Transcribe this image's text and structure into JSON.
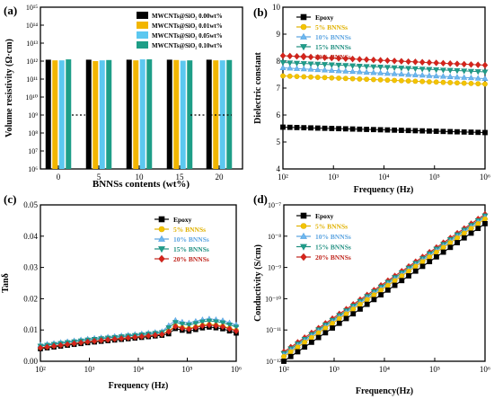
{
  "colors": {
    "epoxy": "#000000",
    "bn5": "#e0b100",
    "bn10": "#5aa3e0",
    "bn15": "#1f8f80",
    "bn20": "#c0261d",
    "marker_fill_5": "#f4c400",
    "marker_fill_10": "#6cb8f0",
    "marker_fill_15": "#1f9e8a",
    "marker_fill_20": "#d8231b"
  },
  "chart_data": [
    {
      "panel": "(a)",
      "type": "bar",
      "ylabel": "Volume resistivity (Ω·cm)",
      "xlabel": "BNNSs contents (wt%)",
      "yscale": "log",
      "ylim_exp": [
        6,
        15
      ],
      "ytick_labels": [
        "10⁶",
        "10⁷",
        "10⁸",
        "10⁹",
        "10¹⁰",
        "10¹¹",
        "10¹²",
        "10¹³",
        "10¹⁴",
        "10¹⁵"
      ],
      "categories": [
        "0",
        "5",
        "10",
        "15",
        "20"
      ],
      "series": [
        {
          "name": "MWCNTs@SiO₂ 0.00wt%",
          "color": "#000000",
          "values": [
            1200000000000.0,
            1200000000000.0,
            1200000000000.0,
            1200000000000.0,
            1200000000000.0
          ]
        },
        {
          "name": "MWCNTs@SiO₂ 0.01wt%",
          "color": "#f2b600",
          "values": [
            1100000000000.0,
            1000000000000.0,
            1100000000000.0,
            1150000000000.0,
            1100000000000.0
          ]
        },
        {
          "name": "MWCNTs@SiO₂ 0.05wt%",
          "color": "#5cc8f0",
          "values": [
            1100000000000.0,
            1100000000000.0,
            1250000000000.0,
            1050000000000.0,
            1100000000000.0
          ]
        },
        {
          "name": "MWCNTs@SiO₂ 0.10wt%",
          "color": "#1e9e87",
          "values": [
            1250000000000.0,
            1150000000000.0,
            1250000000000.0,
            1100000000000.0,
            1150000000000.0
          ]
        }
      ],
      "reference_line": 1000000000.0
    },
    {
      "panel": "(b)",
      "type": "line",
      "ylabel": "Dielectric constant",
      "xlabel": "Frequency (Hz)",
      "xscale": "log",
      "xlim_exp": [
        2,
        6
      ],
      "xtick_labels": [
        "10²",
        "10³",
        "10⁴",
        "10⁵",
        "10⁶"
      ],
      "ylim": [
        4,
        10
      ],
      "ytick_labels": [
        "4",
        "5",
        "6",
        "7",
        "8",
        "9",
        "10"
      ],
      "yticks": [
        4,
        5,
        6,
        7,
        8,
        9,
        10
      ],
      "legend": [
        "Epoxy",
        "5%   BNNSs",
        "10%  BNNSs",
        "15%  BNNSs",
        "20%  BNNSs"
      ],
      "series": [
        {
          "name": "Epoxy",
          "start": 5.55,
          "end": 5.35
        },
        {
          "name": "5%   BNNSs",
          "start": 7.45,
          "end": 7.15
        },
        {
          "name": "10%  BNNSs",
          "start": 7.75,
          "end": 7.35
        },
        {
          "name": "15%  BNNSs",
          "start": 7.95,
          "end": 7.6
        },
        {
          "name": "20%  BNNSs",
          "start": 8.2,
          "end": 7.85
        }
      ]
    },
    {
      "panel": "(c)",
      "type": "line",
      "ylabel": "Tanδ",
      "xlabel": "Frequency (Hz)",
      "xscale": "log",
      "xlim_exp": [
        2,
        6
      ],
      "xtick_labels": [
        "10²",
        "10³",
        "10⁴",
        "10⁵",
        "10⁶"
      ],
      "ylim": [
        0,
        0.05
      ],
      "ytick_labels": [
        "0.00",
        "0.01",
        "0.02",
        "0.03",
        "0.04",
        "0.05"
      ],
      "yticks": [
        0,
        0.01,
        0.02,
        0.03,
        0.04,
        0.05
      ],
      "legend": [
        "Epoxy",
        "5%   BNNSs",
        "10%  BNNSs",
        "15%  BNNSs",
        "20%  BNNSs"
      ],
      "series": [
        {
          "name": "Epoxy",
          "offset": 0.0
        },
        {
          "name": "5%   BNNSs",
          "offset": 0.0004
        },
        {
          "name": "10%  BNNSs",
          "offset": 0.0012
        },
        {
          "name": "15%  BNNSs",
          "offset": 0.0009
        },
        {
          "name": "20%  BNNSs",
          "offset": 0.0003
        }
      ],
      "base_curve": [
        [
          2,
          0.004
        ],
        [
          3,
          0.006
        ],
        [
          4,
          0.0075
        ],
        [
          4.6,
          0.0085
        ],
        [
          4.75,
          0.0105
        ],
        [
          5.0,
          0.0095
        ],
        [
          5.4,
          0.011
        ],
        [
          5.7,
          0.0105
        ],
        [
          6,
          0.009
        ]
      ]
    },
    {
      "panel": "(d)",
      "type": "line",
      "ylabel": "Conductivity (S/cm)",
      "xlabel": "Frequency(Hz)",
      "xscale": "log",
      "yscale": "log",
      "xlim_exp": [
        2,
        6
      ],
      "xtick_labels": [
        "10²",
        "10³",
        "10⁴",
        "10⁵",
        "10⁶"
      ],
      "ylim_exp": [
        -12,
        -7
      ],
      "ytick_labels": [
        "10⁻¹²",
        "10⁻¹¹",
        "10⁻¹⁰",
        "10⁻⁹",
        "10⁻⁸",
        "10⁻⁷"
      ],
      "legend": [
        "Epoxy",
        "5%  BNNSs",
        "10% BNNSs",
        "15% BNNSs",
        "20% BNNSs"
      ],
      "series": [
        {
          "name": "Epoxy",
          "start_exp": -12.0,
          "end_exp": -7.6
        },
        {
          "name": "5%  BNNSs",
          "start_exp": -11.85,
          "end_exp": -7.45
        },
        {
          "name": "10% BNNSs",
          "start_exp": -11.8,
          "end_exp": -7.4
        },
        {
          "name": "15% BNNSs",
          "start_exp": -11.75,
          "end_exp": -7.35
        },
        {
          "name": "20% BNNSs",
          "start_exp": -11.7,
          "end_exp": -7.3
        }
      ]
    }
  ]
}
